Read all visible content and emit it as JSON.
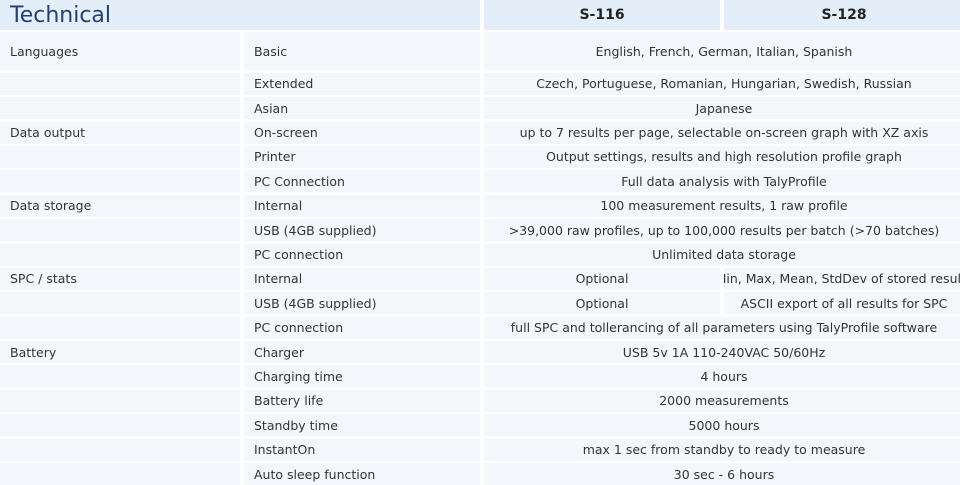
{
  "header": {
    "title": "Technical",
    "models": [
      "S-116",
      "S-128"
    ]
  },
  "rows": [
    {
      "category": "Languages",
      "item": "Basic",
      "value": "English, French, German, Italian, Spanish"
    },
    {
      "category": "",
      "item": "Extended",
      "value": "Czech, Portuguese, Romanian, Hungarian, Swedish, Russian"
    },
    {
      "category": "",
      "item": "Asian",
      "value": "Japanese"
    },
    {
      "category": "Data output",
      "item": "On-screen",
      "value": "up to 7 results per page, selectable on-screen graph with XZ axis"
    },
    {
      "category": "",
      "item": "Printer",
      "value": "Output settings, results and high resolution profile graph"
    },
    {
      "category": "",
      "item": "PC Connection",
      "value": "Full data analysis with TalyProfile"
    },
    {
      "category": "Data storage",
      "item": "Internal",
      "value": "100 measurement results, 1 raw profile"
    },
    {
      "category": "",
      "item": "USB (4GB supplied)",
      "value": ">39,000 raw profiles, up to 100,000 results per batch (>70 batches)"
    },
    {
      "category": "",
      "item": "PC connection",
      "value": "Unlimited data storage"
    },
    {
      "category": "SPC / stats",
      "item": "Internal",
      "s116": "Optional",
      "s128": "Min, Max, Mean, StdDev of stored results"
    },
    {
      "category": "",
      "item": "USB (4GB supplied)",
      "s116": "Optional",
      "s128": "ASCII export of all results for SPC"
    },
    {
      "category": "",
      "item": "PC connection",
      "value": "full SPC and tollerancing of all parameters using TalyProfile software"
    },
    {
      "category": "Battery",
      "item": "Charger",
      "value": "USB 5v 1A 110-240VAC 50/60Hz"
    },
    {
      "category": "",
      "item": "Charging time",
      "value": "4 hours"
    },
    {
      "category": "",
      "item": "Battery life",
      "value": "2000 measurements"
    },
    {
      "category": "",
      "item": "Standby time",
      "value": "5000 hours"
    },
    {
      "category": "",
      "item": "InstantOn",
      "value": "max 1 sec from standby to ready to measure"
    },
    {
      "category": "",
      "item": "Auto sleep function",
      "value": "30 sec - 6 hours"
    }
  ]
}
